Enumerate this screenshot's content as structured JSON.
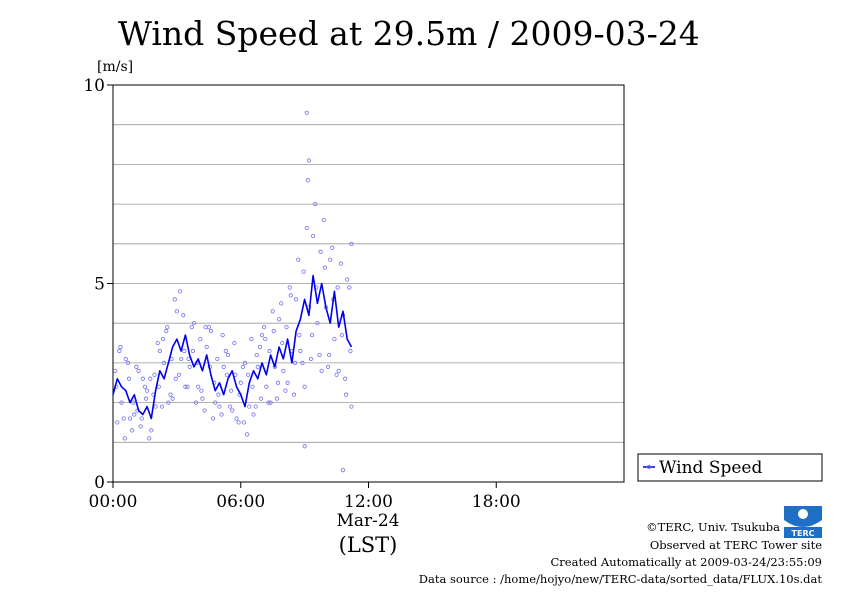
{
  "chart_data": {
    "type": "scatter",
    "title": "Wind Speed at 29.5m / 2009-03-24",
    "ylabel": "[m/s]",
    "xlabel": "(LST)",
    "x_date_label": "Mar-24",
    "x_unit": "hour",
    "xlim": [
      0,
      24
    ],
    "ylim": [
      0,
      10
    ],
    "grid": true,
    "legend_position": "right",
    "x_ticks": [
      {
        "value": 0,
        "label": "00:00"
      },
      {
        "value": 6,
        "label": "06:00"
      },
      {
        "value": 12,
        "label": "12:00"
      },
      {
        "value": 18,
        "label": "18:00"
      }
    ],
    "y_ticks": [
      {
        "value": 0,
        "label": "0"
      },
      {
        "value": 5,
        "label": "5"
      },
      {
        "value": 10,
        "label": "10"
      }
    ],
    "y_gridlines": [
      1,
      2,
      3,
      4,
      5,
      6,
      7,
      8,
      9
    ],
    "series": [
      {
        "name": "Wind Speed",
        "line_color": "#0000ee",
        "point_color": "#7070f0",
        "mean_line": {
          "x": [
            0.0,
            0.2,
            0.4,
            0.6,
            0.8,
            1.0,
            1.2,
            1.4,
            1.6,
            1.8,
            2.0,
            2.2,
            2.4,
            2.6,
            2.8,
            3.0,
            3.2,
            3.4,
            3.6,
            3.8,
            4.0,
            4.2,
            4.4,
            4.6,
            4.8,
            5.0,
            5.2,
            5.4,
            5.6,
            5.8,
            6.0,
            6.2,
            6.4,
            6.6,
            6.8,
            7.0,
            7.2,
            7.4,
            7.6,
            7.8,
            8.0,
            8.2,
            8.4,
            8.6,
            8.8,
            9.0,
            9.2,
            9.4,
            9.6,
            9.8,
            10.0,
            10.2,
            10.4,
            10.6,
            10.8,
            11.0,
            11.2
          ],
          "y": [
            2.2,
            2.6,
            2.4,
            2.3,
            2.0,
            2.2,
            1.8,
            1.7,
            1.9,
            1.6,
            2.3,
            2.8,
            2.6,
            3.0,
            3.4,
            3.6,
            3.3,
            3.7,
            3.2,
            2.9,
            3.1,
            2.8,
            3.2,
            2.7,
            2.3,
            2.5,
            2.2,
            2.6,
            2.8,
            2.4,
            2.2,
            1.9,
            2.5,
            2.8,
            2.6,
            3.0,
            2.7,
            3.2,
            2.9,
            3.4,
            3.1,
            3.6,
            3.0,
            3.8,
            4.1,
            4.6,
            4.2,
            5.2,
            4.5,
            5.0,
            4.4,
            4.0,
            4.8,
            3.9,
            4.3,
            3.6,
            3.4
          ]
        },
        "points": {
          "x": [
            0.1,
            0.3,
            0.5,
            0.7,
            0.9,
            1.1,
            1.3,
            1.5,
            1.7,
            1.9,
            2.1,
            2.3,
            2.5,
            2.7,
            2.9,
            3.1,
            3.3,
            3.5,
            3.7,
            3.9,
            4.1,
            4.3,
            4.5,
            4.7,
            4.9,
            5.1,
            5.3,
            5.5,
            5.7,
            5.9,
            6.1,
            6.3,
            6.5,
            6.7,
            6.9,
            7.1,
            7.3,
            7.5,
            7.7,
            7.9,
            8.1,
            8.3,
            8.5,
            8.7,
            8.9,
            9.1,
            9.3,
            9.5,
            9.7,
            9.9,
            10.1,
            10.3,
            10.5,
            10.7,
            10.9,
            11.1,
            0.2,
            0.6,
            1.0,
            1.4,
            1.8,
            2.2,
            2.6,
            3.0,
            3.4,
            3.8,
            4.2,
            4.6,
            5.0,
            5.4,
            5.8,
            6.2,
            6.6,
            7.0,
            7.4,
            7.8,
            8.2,
            8.6,
            9.0,
            9.4,
            9.8,
            10.2,
            10.6,
            11.0,
            0.4,
            0.8,
            1.2,
            1.6,
            2.0,
            2.4,
            2.8,
            3.2,
            3.6,
            4.0,
            4.4,
            4.8,
            5.2,
            5.6,
            6.0,
            6.4,
            6.8,
            7.2,
            7.6,
            8.0,
            8.4,
            8.8,
            9.2,
            9.6,
            10.0,
            10.4,
            10.8,
            11.2,
            0.15,
            0.55,
            0.95,
            1.35,
            1.75,
            2.15,
            2.55,
            2.95,
            3.35,
            3.75,
            4.15,
            4.55,
            4.95,
            5.35,
            5.75,
            6.15,
            6.55,
            6.95,
            7.35,
            7.75,
            8.15,
            8.55,
            8.95,
            9.35,
            9.75,
            10.15,
            10.55,
            10.95,
            0.35,
            0.75,
            1.15,
            1.55,
            1.95,
            2.35,
            2.75,
            3.15,
            3.55,
            3.95,
            4.35,
            4.75,
            5.15,
            5.55,
            5.95,
            6.35,
            6.75,
            7.15,
            7.55,
            7.95,
            8.35,
            8.75,
            9.15,
            9.55,
            9.95,
            10.35,
            10.75,
            11.15,
            9.1,
            9.2,
            9.0,
            10.8,
            11.2
          ],
          "y": [
            2.8,
            3.3,
            1.6,
            3.0,
            1.3,
            2.9,
            1.4,
            2.4,
            1.1,
            2.2,
            3.5,
            1.9,
            3.8,
            2.2,
            4.6,
            2.7,
            4.2,
            2.4,
            3.9,
            2.0,
            3.6,
            1.8,
            3.9,
            1.6,
            3.1,
            1.7,
            3.3,
            1.9,
            3.5,
            1.5,
            2.9,
            1.2,
            3.6,
            1.9,
            3.4,
            3.9,
            2.0,
            4.3,
            2.1,
            4.5,
            2.3,
            4.9,
            2.2,
            5.6,
            3.0,
            6.4,
            3.1,
            7.0,
            3.2,
            6.6,
            2.9,
            5.9,
            2.7,
            5.5,
            2.6,
            4.9,
            1.5,
            3.1,
            1.7,
            2.6,
            1.3,
            3.3,
            2.0,
            4.3,
            2.4,
            4.0,
            2.1,
            3.8,
            1.9,
            3.2,
            1.6,
            3.0,
            1.7,
            3.7,
            2.0,
            4.1,
            2.5,
            4.6,
            2.4,
            6.2,
            2.8,
            5.6,
            2.8,
            5.1,
            2.0,
            1.6,
            2.8,
            2.3,
            1.9,
            3.0,
            2.1,
            3.1,
            2.9,
            2.4,
            3.4,
            2.0,
            2.9,
            1.8,
            2.5,
            1.9,
            2.9,
            2.4,
            2.9,
            2.8,
            3.3,
            3.3,
            4.4,
            4.0,
            4.4,
            3.6,
            4.2,
            1.9,
            2.4,
            1.1,
            2.0,
            1.6,
            2.6,
            2.4,
            3.9,
            2.6,
            3.3,
            3.3,
            2.3,
            2.9,
            2.2,
            2.7,
            2.7,
            1.5,
            2.4,
            2.1,
            3.3,
            2.5,
            3.9,
            3.0,
            5.3,
            3.7,
            5.8,
            3.2,
            4.9,
            2.2,
            3.4,
            2.6,
            1.8,
            2.1,
            2.7,
            3.6,
            3.1,
            4.8,
            3.1,
            3.0,
            3.9,
            2.5,
            3.7,
            2.3,
            2.2,
            2.7,
            3.2,
            3.6,
            3.8,
            3.5,
            4.7,
            3.7,
            7.6,
            4.9,
            5.4,
            4.6,
            3.7,
            3.3,
            9.3,
            8.1,
            0.9,
            0.3,
            6.0
          ]
        }
      }
    ]
  },
  "footer": {
    "copyright": "©TERC, Univ. Tsukuba",
    "observed": "Observed at TERC Tower site",
    "created": "Created Automatically at 2009-03-24/23:55:09",
    "source": "Data source : /home/hojyo/new/TERC-data/sorted_data/FLUX.10s.dat",
    "logo_text": "TERC"
  }
}
